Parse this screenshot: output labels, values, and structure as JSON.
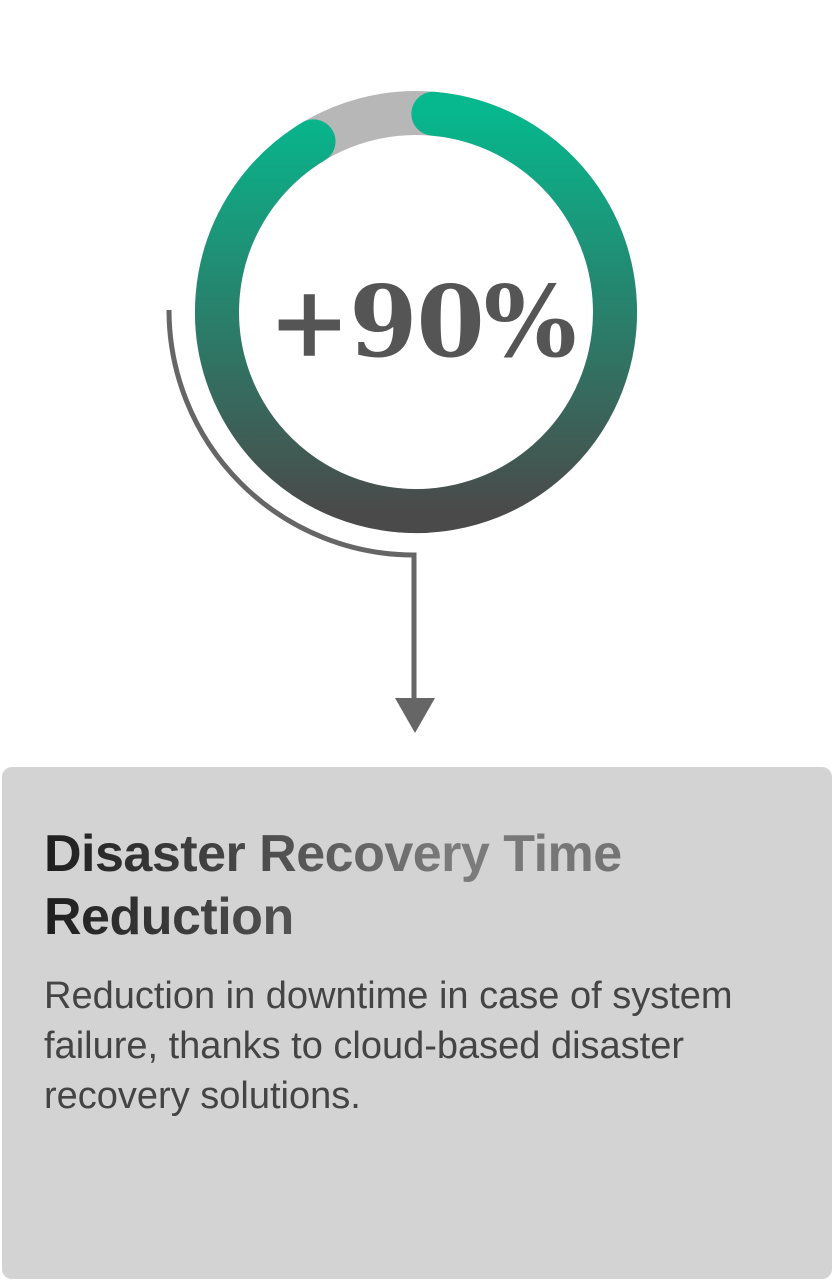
{
  "stat": {
    "value_label": "+90%",
    "progress_fraction": 0.9,
    "colors": {
      "track": "#b7b7b7",
      "progress_start": "#07b78d",
      "progress_end": "#4a4a4a",
      "connector": "#666666"
    }
  },
  "card": {
    "title": "Disaster Recovery Time Reduction",
    "description": "Reduction in downtime in case of system failure, thanks to cloud-based disaster recovery solutions."
  }
}
